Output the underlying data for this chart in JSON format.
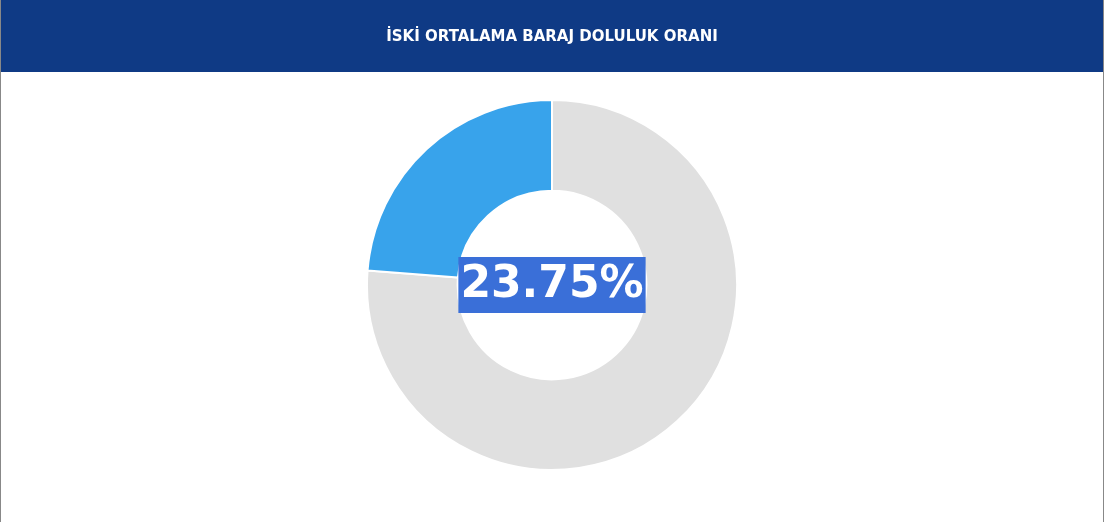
{
  "chart_data": {
    "type": "donut",
    "title": "İSKİ ORTALAMA BARAJ DOLULUK ORANI",
    "categories": [
      null,
      null
    ],
    "values": [
      76.25,
      23.75
    ],
    "colors": [
      "#e0e0e0",
      "#38a3eb"
    ],
    "value_labels": [
      null,
      "23.75%"
    ]
  }
}
